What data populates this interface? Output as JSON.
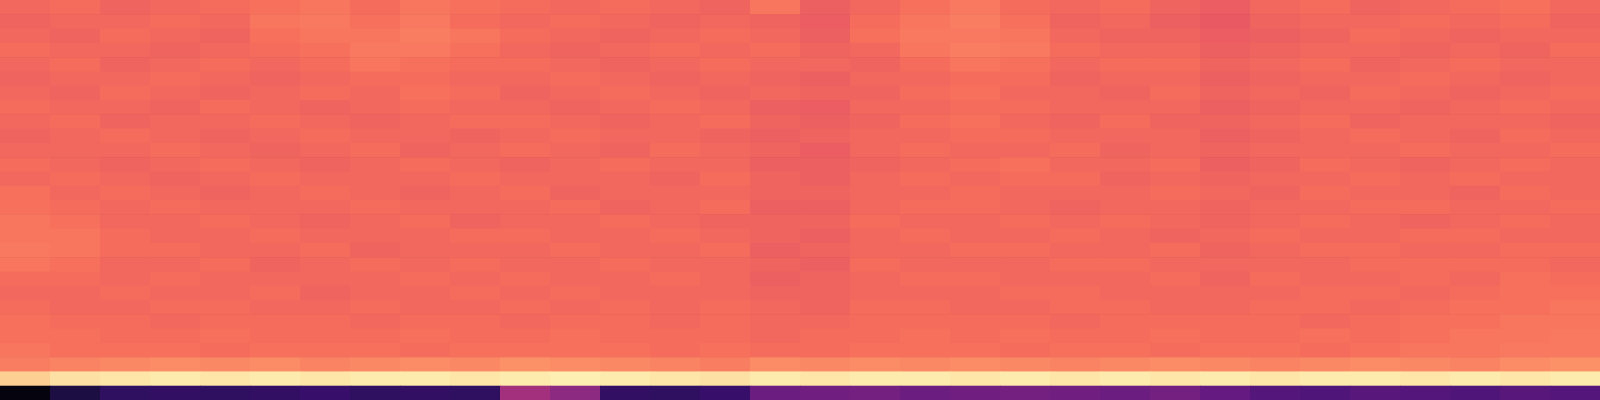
{
  "chart_data": {
    "type": "heatmap",
    "tick_labels": false,
    "color_range": [
      0,
      1
    ],
    "cells": [
      [
        0.68,
        0.69,
        0.67,
        0.68,
        0.69,
        0.7,
        0.71,
        0.69,
        0.71,
        0.7,
        0.69,
        0.68,
        0.69,
        0.68,
        0.67,
        0.71,
        0.66,
        0.68,
        0.7,
        0.72,
        0.69,
        0.68,
        0.69,
        0.67,
        0.65,
        0.68,
        0.69,
        0.67,
        0.68,
        0.69,
        0.7,
        0.68
      ],
      [
        0.67,
        0.68,
        0.68,
        0.69,
        0.68,
        0.71,
        0.72,
        0.7,
        0.72,
        0.69,
        0.68,
        0.69,
        0.68,
        0.67,
        0.68,
        0.67,
        0.65,
        0.69,
        0.71,
        0.73,
        0.7,
        0.67,
        0.68,
        0.66,
        0.64,
        0.67,
        0.68,
        0.68,
        0.69,
        0.68,
        0.69,
        0.67
      ],
      [
        0.68,
        0.67,
        0.69,
        0.68,
        0.67,
        0.7,
        0.71,
        0.71,
        0.73,
        0.71,
        0.69,
        0.68,
        0.67,
        0.68,
        0.69,
        0.68,
        0.66,
        0.7,
        0.72,
        0.72,
        0.71,
        0.68,
        0.67,
        0.67,
        0.65,
        0.66,
        0.67,
        0.69,
        0.68,
        0.67,
        0.68,
        0.68
      ],
      [
        0.69,
        0.68,
        0.68,
        0.67,
        0.68,
        0.69,
        0.7,
        0.72,
        0.72,
        0.7,
        0.68,
        0.67,
        0.68,
        0.69,
        0.68,
        0.69,
        0.67,
        0.68,
        0.71,
        0.73,
        0.72,
        0.69,
        0.68,
        0.68,
        0.66,
        0.67,
        0.68,
        0.68,
        0.67,
        0.68,
        0.67,
        0.69
      ],
      [
        0.68,
        0.69,
        0.67,
        0.68,
        0.69,
        0.68,
        0.69,
        0.71,
        0.7,
        0.69,
        0.69,
        0.68,
        0.67,
        0.68,
        0.69,
        0.68,
        0.68,
        0.67,
        0.69,
        0.71,
        0.7,
        0.68,
        0.69,
        0.69,
        0.67,
        0.68,
        0.69,
        0.67,
        0.68,
        0.69,
        0.68,
        0.68
      ],
      [
        0.67,
        0.68,
        0.68,
        0.69,
        0.68,
        0.67,
        0.68,
        0.69,
        0.69,
        0.68,
        0.68,
        0.69,
        0.68,
        0.67,
        0.68,
        0.67,
        0.66,
        0.68,
        0.68,
        0.69,
        0.69,
        0.67,
        0.68,
        0.68,
        0.66,
        0.67,
        0.68,
        0.68,
        0.69,
        0.68,
        0.67,
        0.68
      ],
      [
        0.68,
        0.67,
        0.69,
        0.68,
        0.67,
        0.68,
        0.69,
        0.68,
        0.7,
        0.69,
        0.67,
        0.68,
        0.69,
        0.68,
        0.67,
        0.68,
        0.67,
        0.67,
        0.69,
        0.7,
        0.68,
        0.68,
        0.67,
        0.69,
        0.67,
        0.68,
        0.67,
        0.69,
        0.68,
        0.67,
        0.68,
        0.69
      ],
      [
        0.69,
        0.68,
        0.68,
        0.67,
        0.69,
        0.68,
        0.67,
        0.68,
        0.69,
        0.68,
        0.68,
        0.67,
        0.68,
        0.69,
        0.68,
        0.66,
        0.65,
        0.68,
        0.68,
        0.69,
        0.69,
        0.68,
        0.68,
        0.68,
        0.66,
        0.67,
        0.68,
        0.68,
        0.67,
        0.68,
        0.69,
        0.68
      ],
      [
        0.68,
        0.69,
        0.67,
        0.68,
        0.68,
        0.69,
        0.68,
        0.67,
        0.68,
        0.69,
        0.69,
        0.68,
        0.67,
        0.68,
        0.69,
        0.67,
        0.66,
        0.67,
        0.69,
        0.7,
        0.68,
        0.67,
        0.69,
        0.67,
        0.67,
        0.68,
        0.69,
        0.67,
        0.68,
        0.68,
        0.68,
        0.67
      ],
      [
        0.67,
        0.68,
        0.69,
        0.68,
        0.67,
        0.68,
        0.69,
        0.68,
        0.68,
        0.67,
        0.68,
        0.69,
        0.68,
        0.68,
        0.67,
        0.66,
        0.67,
        0.68,
        0.68,
        0.69,
        0.69,
        0.68,
        0.68,
        0.68,
        0.66,
        0.67,
        0.68,
        0.69,
        0.68,
        0.67,
        0.69,
        0.68
      ],
      [
        0.68,
        0.68,
        0.68,
        0.69,
        0.68,
        0.67,
        0.68,
        0.69,
        0.67,
        0.68,
        0.69,
        0.68,
        0.67,
        0.69,
        0.68,
        0.67,
        0.65,
        0.68,
        0.69,
        0.68,
        0.68,
        0.69,
        0.67,
        0.68,
        0.67,
        0.68,
        0.68,
        0.68,
        0.69,
        0.68,
        0.68,
        0.69
      ],
      [
        0.69,
        0.68,
        0.67,
        0.68,
        0.69,
        0.68,
        0.67,
        0.68,
        0.69,
        0.68,
        0.67,
        0.68,
        0.69,
        0.68,
        0.68,
        0.66,
        0.66,
        0.67,
        0.68,
        0.69,
        0.7,
        0.68,
        0.68,
        0.69,
        0.66,
        0.67,
        0.69,
        0.68,
        0.67,
        0.68,
        0.69,
        0.68
      ],
      [
        0.68,
        0.69,
        0.68,
        0.67,
        0.68,
        0.69,
        0.68,
        0.68,
        0.68,
        0.69,
        0.68,
        0.68,
        0.68,
        0.67,
        0.69,
        0.67,
        0.66,
        0.68,
        0.69,
        0.68,
        0.69,
        0.69,
        0.67,
        0.68,
        0.67,
        0.68,
        0.68,
        0.69,
        0.68,
        0.69,
        0.68,
        0.68
      ],
      [
        0.7,
        0.68,
        0.69,
        0.68,
        0.67,
        0.68,
        0.69,
        0.68,
        0.67,
        0.68,
        0.69,
        0.67,
        0.68,
        0.68,
        0.68,
        0.67,
        0.67,
        0.68,
        0.68,
        0.69,
        0.68,
        0.68,
        0.68,
        0.69,
        0.68,
        0.67,
        0.69,
        0.68,
        0.68,
        0.67,
        0.69,
        0.68
      ],
      [
        0.7,
        0.69,
        0.68,
        0.69,
        0.68,
        0.68,
        0.68,
        0.69,
        0.68,
        0.68,
        0.68,
        0.69,
        0.67,
        0.68,
        0.69,
        0.66,
        0.66,
        0.68,
        0.69,
        0.69,
        0.68,
        0.67,
        0.68,
        0.68,
        0.67,
        0.68,
        0.68,
        0.69,
        0.69,
        0.68,
        0.68,
        0.69
      ],
      [
        0.71,
        0.7,
        0.68,
        0.68,
        0.69,
        0.68,
        0.67,
        0.68,
        0.69,
        0.67,
        0.68,
        0.68,
        0.69,
        0.68,
        0.67,
        0.67,
        0.67,
        0.69,
        0.68,
        0.68,
        0.69,
        0.68,
        0.69,
        0.68,
        0.67,
        0.68,
        0.69,
        0.68,
        0.67,
        0.68,
        0.69,
        0.68
      ],
      [
        0.71,
        0.71,
        0.69,
        0.68,
        0.68,
        0.69,
        0.68,
        0.68,
        0.68,
        0.69,
        0.69,
        0.68,
        0.68,
        0.69,
        0.68,
        0.67,
        0.66,
        0.68,
        0.69,
        0.68,
        0.68,
        0.69,
        0.68,
        0.67,
        0.68,
        0.69,
        0.68,
        0.68,
        0.69,
        0.69,
        0.68,
        0.68
      ],
      [
        0.72,
        0.71,
        0.69,
        0.69,
        0.68,
        0.68,
        0.69,
        0.67,
        0.68,
        0.68,
        0.68,
        0.69,
        0.68,
        0.68,
        0.69,
        0.66,
        0.67,
        0.68,
        0.68,
        0.69,
        0.69,
        0.68,
        0.68,
        0.69,
        0.67,
        0.68,
        0.69,
        0.69,
        0.68,
        0.68,
        0.69,
        0.69
      ],
      [
        0.71,
        0.7,
        0.68,
        0.68,
        0.69,
        0.67,
        0.68,
        0.69,
        0.68,
        0.69,
        0.68,
        0.68,
        0.69,
        0.68,
        0.68,
        0.67,
        0.66,
        0.69,
        0.68,
        0.68,
        0.68,
        0.69,
        0.69,
        0.68,
        0.68,
        0.68,
        0.68,
        0.69,
        0.69,
        0.69,
        0.69,
        0.68
      ],
      [
        0.69,
        0.69,
        0.68,
        0.69,
        0.68,
        0.68,
        0.68,
        0.68,
        0.69,
        0.68,
        0.69,
        0.68,
        0.68,
        0.69,
        0.68,
        0.66,
        0.67,
        0.68,
        0.69,
        0.69,
        0.68,
        0.68,
        0.68,
        0.69,
        0.67,
        0.69,
        0.68,
        0.68,
        0.69,
        0.68,
        0.7,
        0.69
      ],
      [
        0.68,
        0.68,
        0.69,
        0.68,
        0.68,
        0.69,
        0.67,
        0.68,
        0.68,
        0.69,
        0.68,
        0.69,
        0.68,
        0.68,
        0.68,
        0.67,
        0.67,
        0.68,
        0.68,
        0.68,
        0.69,
        0.69,
        0.68,
        0.68,
        0.68,
        0.68,
        0.69,
        0.69,
        0.68,
        0.69,
        0.7,
        0.7
      ],
      [
        0.69,
        0.68,
        0.68,
        0.69,
        0.69,
        0.68,
        0.68,
        0.69,
        0.68,
        0.68,
        0.69,
        0.68,
        0.69,
        0.68,
        0.69,
        0.68,
        0.67,
        0.69,
        0.69,
        0.68,
        0.68,
        0.69,
        0.69,
        0.68,
        0.68,
        0.69,
        0.69,
        0.68,
        0.69,
        0.7,
        0.7,
        0.71
      ],
      [
        0.7,
        0.69,
        0.69,
        0.68,
        0.69,
        0.69,
        0.69,
        0.68,
        0.69,
        0.69,
        0.68,
        0.69,
        0.69,
        0.68,
        0.69,
        0.68,
        0.68,
        0.69,
        0.69,
        0.69,
        0.69,
        0.68,
        0.69,
        0.69,
        0.69,
        0.69,
        0.68,
        0.69,
        0.7,
        0.7,
        0.71,
        0.71
      ],
      [
        0.7,
        0.7,
        0.69,
        0.69,
        0.7,
        0.69,
        0.69,
        0.69,
        0.7,
        0.69,
        0.69,
        0.7,
        0.69,
        0.69,
        0.69,
        0.68,
        0.69,
        0.69,
        0.7,
        0.69,
        0.7,
        0.69,
        0.69,
        0.7,
        0.69,
        0.69,
        0.7,
        0.69,
        0.7,
        0.71,
        0.71,
        0.72
      ],
      [
        0.71,
        0.7,
        0.7,
        0.7,
        0.69,
        0.7,
        0.7,
        0.7,
        0.69,
        0.7,
        0.7,
        0.7,
        0.7,
        0.69,
        0.7,
        0.69,
        0.69,
        0.7,
        0.7,
        0.7,
        0.69,
        0.7,
        0.7,
        0.69,
        0.7,
        0.7,
        0.69,
        0.7,
        0.71,
        0.71,
        0.72,
        0.72
      ],
      [
        0.73,
        0.74,
        0.75,
        0.76,
        0.75,
        0.76,
        0.74,
        0.75,
        0.76,
        0.75,
        0.77,
        0.76,
        0.75,
        0.74,
        0.73,
        0.76,
        0.75,
        0.76,
        0.75,
        0.76,
        0.75,
        0.74,
        0.75,
        0.76,
        0.75,
        0.74,
        0.75,
        0.76,
        0.75,
        0.74,
        0.76,
        0.77
      ],
      [
        0.9,
        0.94,
        0.95,
        0.96,
        0.95,
        0.96,
        0.95,
        0.96,
        0.96,
        0.95,
        0.96,
        0.97,
        0.96,
        0.95,
        0.94,
        0.96,
        0.95,
        0.96,
        0.96,
        0.95,
        0.96,
        0.95,
        0.96,
        0.95,
        0.96,
        0.95,
        0.96,
        0.96,
        0.95,
        0.96,
        0.95,
        0.96
      ],
      [
        0.02,
        0.12,
        0.17,
        0.18,
        0.17,
        0.18,
        0.19,
        0.17,
        0.18,
        0.17,
        0.45,
        0.4,
        0.18,
        0.17,
        0.19,
        0.32,
        0.33,
        0.34,
        0.32,
        0.33,
        0.34,
        0.33,
        0.32,
        0.34,
        0.3,
        0.26,
        0.25,
        0.27,
        0.26,
        0.25,
        0.27,
        0.26
      ]
    ]
  }
}
